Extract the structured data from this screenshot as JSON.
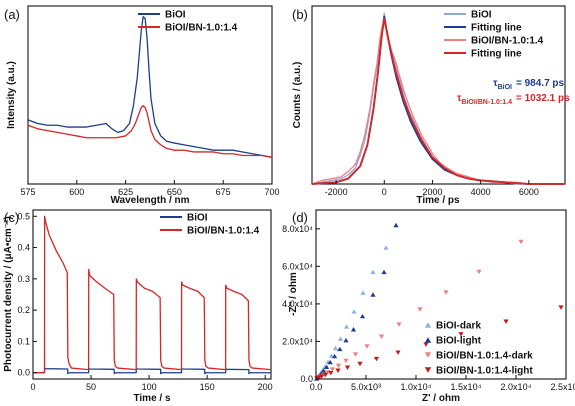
{
  "chart_data": [
    {
      "id": "a",
      "type": "line",
      "panel_label": "(a)",
      "xlabel": "Wavelength / nm",
      "ylabel": "Intensity (a.u.)",
      "xlim": [
        575,
        700
      ],
      "ylim": [
        0,
        1
      ],
      "x_ticks": [
        575,
        600,
        625,
        650,
        675,
        700
      ],
      "x_tick_labels": [
        "575",
        "600",
        "625",
        "650",
        "675",
        "700"
      ],
      "y_ticks_shown": false,
      "legend_position": "top-center",
      "series": [
        {
          "name": "BiOI",
          "color": "#1f3d8f",
          "x": [
            575,
            580,
            585,
            590,
            595,
            600,
            605,
            610,
            615,
            618,
            621,
            624,
            627,
            629,
            631,
            632,
            633,
            634,
            635,
            636,
            637,
            638,
            640,
            643,
            646,
            650,
            655,
            660,
            665,
            670,
            675,
            680,
            685,
            690,
            695,
            700
          ],
          "y": [
            0.36,
            0.34,
            0.33,
            0.33,
            0.32,
            0.32,
            0.32,
            0.33,
            0.34,
            0.31,
            0.29,
            0.3,
            0.34,
            0.44,
            0.6,
            0.73,
            0.86,
            0.94,
            0.93,
            0.82,
            0.64,
            0.48,
            0.34,
            0.27,
            0.24,
            0.23,
            0.22,
            0.21,
            0.2,
            0.19,
            0.19,
            0.19,
            0.18,
            0.17,
            0.16,
            0.15
          ]
        },
        {
          "name": "BiOI/BN-1.0:1.4",
          "color": "#d62728",
          "x": [
            575,
            580,
            585,
            590,
            595,
            600,
            605,
            610,
            615,
            620,
            625,
            628,
            630,
            632,
            633,
            634,
            635,
            636,
            637,
            638,
            640,
            643,
            646,
            650,
            655,
            660,
            665,
            670,
            675,
            680,
            685,
            690,
            695,
            700
          ],
          "y": [
            0.33,
            0.31,
            0.3,
            0.29,
            0.28,
            0.27,
            0.26,
            0.26,
            0.26,
            0.26,
            0.27,
            0.3,
            0.34,
            0.4,
            0.43,
            0.44,
            0.43,
            0.4,
            0.35,
            0.3,
            0.25,
            0.22,
            0.2,
            0.19,
            0.19,
            0.18,
            0.18,
            0.18,
            0.17,
            0.17,
            0.16,
            0.16,
            0.16,
            0.15
          ]
        }
      ]
    },
    {
      "id": "b",
      "type": "line",
      "panel_label": "(b)",
      "xlabel": "Time / ps",
      "ylabel": "Counts / (a.u.)",
      "xlim": [
        -3000,
        7500
      ],
      "ylim": [
        0,
        1
      ],
      "x_ticks": [
        -2000,
        0,
        2000,
        4000,
        6000
      ],
      "x_tick_labels": [
        "-2000",
        "0",
        "2000",
        "4000",
        "6000"
      ],
      "y_ticks_shown": false,
      "legend_position": "top-right",
      "annotations": [
        {
          "label": "τ",
          "subscript": "BiOI",
          "value": "= 984.7 ps",
          "color": "#1f3d8f"
        },
        {
          "label": "τ",
          "subscript": "BiOI/BN-1.0:1.4",
          "value": "= 1032.1 ps",
          "color": "#d62728"
        }
      ],
      "series": [
        {
          "name": "BiOI",
          "color": "#8fa8d8",
          "x": [
            -3000,
            -2600,
            -2200,
            -1800,
            -1500,
            -1200,
            -1000,
            -800,
            -600,
            -450,
            -300,
            -200,
            -100,
            0,
            100,
            200,
            300,
            400,
            500,
            600,
            700,
            800,
            1000,
            1200,
            1400,
            1600,
            1800,
            2000,
            2300,
            2600,
            3000,
            3500,
            4000,
            4500,
            5000,
            5500,
            6000,
            6500,
            7000,
            7500
          ],
          "y": [
            0.0,
            0.01,
            0.02,
            0.03,
            0.05,
            0.09,
            0.16,
            0.25,
            0.4,
            0.54,
            0.66,
            0.78,
            0.86,
            0.96,
            0.86,
            0.8,
            0.75,
            0.72,
            0.66,
            0.6,
            0.56,
            0.5,
            0.42,
            0.36,
            0.3,
            0.24,
            0.2,
            0.15,
            0.11,
            0.08,
            0.05,
            0.03,
            0.02,
            0.01,
            0.01,
            0.0,
            0.0,
            0.0,
            0.0,
            0.0
          ]
        },
        {
          "name": "Fitting line",
          "color": "#1f3d8f",
          "x": [
            -3000,
            -2000,
            -1500,
            -1000,
            -700,
            -450,
            -250,
            -100,
            0,
            150,
            300,
            500,
            800,
            1100,
            1500,
            2000,
            2500,
            3000,
            3500,
            4000,
            5000,
            6000,
            7000,
            7500
          ],
          "y": [
            0.0,
            0.01,
            0.03,
            0.1,
            0.22,
            0.42,
            0.64,
            0.84,
            0.94,
            0.82,
            0.72,
            0.6,
            0.46,
            0.35,
            0.24,
            0.14,
            0.08,
            0.05,
            0.03,
            0.02,
            0.01,
            0.0,
            0.0,
            0.0
          ]
        },
        {
          "name": "BiOI/BN-1.0:1.4",
          "color": "#f08080",
          "x": [
            -3000,
            -2600,
            -2200,
            -1800,
            -1500,
            -1200,
            -1000,
            -800,
            -600,
            -450,
            -300,
            -200,
            -100,
            0,
            100,
            200,
            300,
            400,
            500,
            600,
            700,
            800,
            1000,
            1200,
            1400,
            1600,
            1800,
            2000,
            2300,
            2600,
            3000,
            3500,
            4000,
            4500,
            5000,
            5500,
            6000,
            6500,
            7000,
            7500
          ],
          "y": [
            0.0,
            0.02,
            0.03,
            0.04,
            0.07,
            0.11,
            0.18,
            0.28,
            0.42,
            0.56,
            0.68,
            0.8,
            0.88,
            0.93,
            0.84,
            0.78,
            0.74,
            0.7,
            0.68,
            0.62,
            0.58,
            0.53,
            0.45,
            0.38,
            0.32,
            0.26,
            0.22,
            0.17,
            0.12,
            0.09,
            0.06,
            0.04,
            0.02,
            0.01,
            0.01,
            0.01,
            0.0,
            0.0,
            0.0,
            0.0
          ]
        },
        {
          "name": "Fitting line",
          "color": "#d62728",
          "x": [
            -3000,
            -2000,
            -1500,
            -1000,
            -700,
            -450,
            -250,
            -100,
            0,
            150,
            300,
            500,
            800,
            1100,
            1500,
            2000,
            2500,
            3000,
            3500,
            4000,
            5000,
            6000,
            7000,
            7500
          ],
          "y": [
            0.0,
            0.01,
            0.03,
            0.1,
            0.22,
            0.42,
            0.64,
            0.84,
            0.93,
            0.83,
            0.73,
            0.62,
            0.48,
            0.37,
            0.26,
            0.15,
            0.09,
            0.05,
            0.03,
            0.02,
            0.01,
            0.0,
            0.0,
            0.0
          ]
        }
      ]
    },
    {
      "id": "c",
      "type": "line",
      "panel_label": "(c)",
      "xlabel": "Time / s",
      "ylabel": "Photocurrent density / (μA•cm⁻²)",
      "xlim": [
        0,
        205
      ],
      "ylim": [
        -0.02,
        0.52
      ],
      "x_ticks": [
        0,
        50,
        100,
        150,
        200
      ],
      "x_tick_labels": [
        "0",
        "50",
        "100",
        "150",
        "200"
      ],
      "y_ticks": [
        0.0,
        0.1,
        0.2,
        0.3,
        0.4,
        0.5
      ],
      "y_tick_labels": [
        "0.0",
        "0.1",
        "0.2",
        "0.3",
        "0.4",
        "0.5"
      ],
      "legend_position": "top-right",
      "series": [
        {
          "name": "BiOI",
          "color": "#1f3d8f",
          "x": [
            0,
            9.9,
            10,
            11,
            29.9,
            30,
            31,
            47.9,
            48,
            49,
            69.9,
            70,
            71,
            88.9,
            89,
            90,
            109.9,
            110,
            111,
            127.9,
            128,
            129,
            147.9,
            148,
            149,
            165.9,
            166,
            167,
            185.9,
            186,
            187,
            205
          ],
          "y": [
            0.0,
            0.0,
            0.015,
            0.013,
            0.012,
            -0.003,
            0.0,
            0.0,
            0.013,
            0.012,
            0.011,
            -0.003,
            0.0,
            0.0,
            0.013,
            0.012,
            0.011,
            -0.003,
            0.0,
            0.0,
            0.013,
            0.012,
            0.011,
            -0.003,
            0.0,
            0.0,
            0.012,
            0.011,
            0.01,
            -0.003,
            0.0,
            0.0
          ]
        },
        {
          "name": "BiOI/BN-1.0:1.4",
          "color": "#d62728",
          "x": [
            0,
            9.9,
            10,
            11,
            14,
            20,
            26,
            29.5,
            30,
            31,
            33,
            47.9,
            48,
            49,
            55,
            62,
            69.5,
            70,
            71,
            73,
            88.9,
            89,
            90,
            96,
            103,
            109.5,
            110,
            111,
            113,
            127.9,
            128,
            129,
            135,
            142,
            147.5,
            148,
            149,
            151,
            165.9,
            166,
            167,
            173,
            180,
            185.5,
            186,
            187,
            189,
            205
          ],
          "y": [
            0.0,
            0.0,
            0.5,
            0.48,
            0.44,
            0.39,
            0.35,
            0.32,
            0.05,
            0.03,
            0.015,
            0.01,
            0.33,
            0.31,
            0.29,
            0.27,
            0.25,
            0.04,
            0.02,
            0.015,
            0.01,
            0.3,
            0.29,
            0.27,
            0.26,
            0.24,
            0.04,
            0.02,
            0.015,
            0.01,
            0.29,
            0.28,
            0.27,
            0.26,
            0.24,
            0.04,
            0.02,
            0.015,
            0.01,
            0.28,
            0.27,
            0.26,
            0.25,
            0.23,
            0.04,
            0.02,
            0.015,
            0.01
          ]
        }
      ]
    },
    {
      "id": "d",
      "type": "scatter",
      "panel_label": "(d)",
      "xlabel": "Z' / ohm",
      "ylabel": "-Z'' / ohm",
      "xlim": [
        0,
        25000
      ],
      "ylim": [
        0,
        90000
      ],
      "x_ticks": [
        0,
        5000,
        10000,
        15000,
        20000,
        25000
      ],
      "x_tick_labels": [
        "0.0",
        "5.0x10³",
        "1.0x10⁴",
        "1.5x10⁴",
        "2.0x10⁴",
        "2.5x10⁴"
      ],
      "y_ticks": [
        0,
        20000,
        40000,
        60000,
        80000
      ],
      "y_tick_labels": [
        "0.0",
        "2.0x10⁴",
        "4.0x10⁴",
        "6.0x10⁴",
        "8.0x10⁴"
      ],
      "legend_position": "bottom-right",
      "series": [
        {
          "name": "BiOI-dark",
          "color": "#8fb3e0",
          "marker": "triangle-up",
          "x": [
            60,
            150,
            280,
            450,
            650,
            900,
            1200,
            1550,
            1950,
            2450,
            3050,
            3800,
            4700,
            5700,
            7000
          ],
          "y": [
            300,
            900,
            1800,
            3000,
            4600,
            6600,
            9200,
            12500,
            16500,
            21500,
            28000,
            36000,
            46000,
            57000,
            70000
          ]
        },
        {
          "name": "BiOI-light",
          "color": "#1f3d8f",
          "marker": "triangle-up",
          "x": [
            70,
            170,
            320,
            520,
            760,
            1060,
            1420,
            1860,
            2380,
            3000,
            3750,
            4650,
            5700,
            6800,
            8000
          ],
          "y": [
            300,
            900,
            1800,
            3000,
            4500,
            6500,
            9000,
            12200,
            16000,
            20700,
            26500,
            33500,
            45000,
            57000,
            82000
          ]
        },
        {
          "name": "BiOI/BN-1.0:1.4-dark",
          "color": "#f08080",
          "marker": "triangle-down",
          "x": [
            100,
            250,
            480,
            780,
            1160,
            1650,
            2250,
            3000,
            3950,
            5100,
            6550,
            8300,
            10400,
            13000,
            16300,
            20500
          ],
          "y": [
            250,
            700,
            1400,
            2300,
            3500,
            5000,
            7000,
            9600,
            13000,
            17300,
            22500,
            29000,
            37000,
            46000,
            57000,
            73000
          ]
        },
        {
          "name": "BiOI/BN-1.0:1.4-light",
          "color": "#c41a1a",
          "marker": "triangle-down",
          "x": [
            110,
            280,
            560,
            950,
            1480,
            2200,
            3150,
            4400,
            6050,
            8200,
            11000,
            14500,
            19000,
            24500
          ],
          "y": [
            250,
            700,
            1300,
            2100,
            3100,
            4400,
            6000,
            8000,
            10600,
            14000,
            18300,
            23800,
            30500,
            38000
          ]
        }
      ]
    }
  ]
}
